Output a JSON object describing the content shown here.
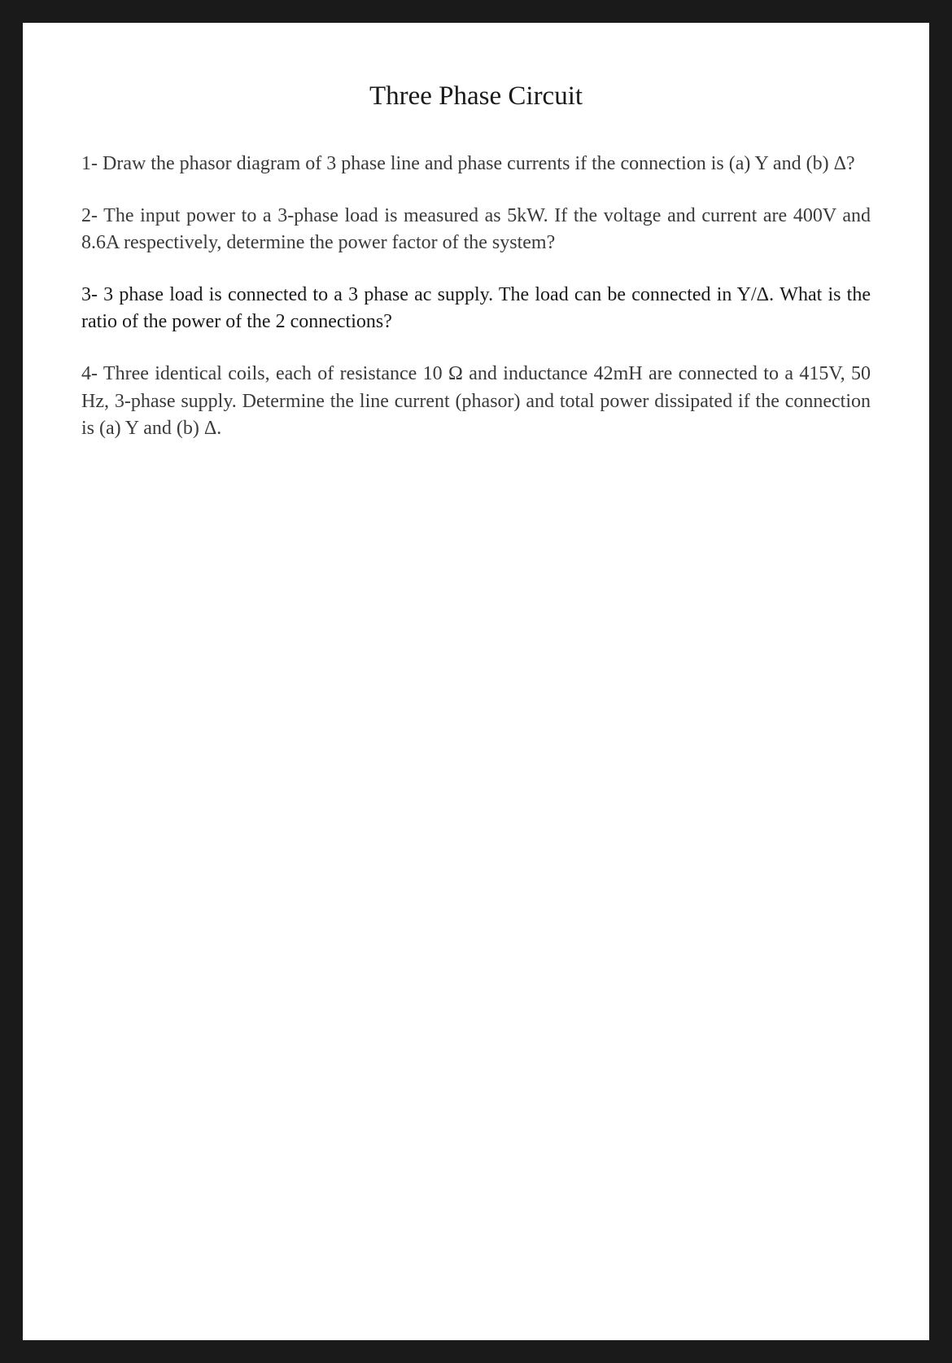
{
  "document": {
    "title": "Three Phase Circuit",
    "background_color": "#1a1a1a",
    "page_color": "#ffffff",
    "title_fontsize": 33,
    "body_fontsize": 24,
    "normal_text_color": "#3a3a3a",
    "emphasis_text_color": "#1a1a1a",
    "questions": [
      {
        "text": "1- Draw the phasor diagram of 3 phase line and phase currents if the connection is (a) Y and (b) Δ?",
        "style": "normal"
      },
      {
        "text": "2- The input power to a 3-phase load is measured as 5kW. If the voltage and current are 400V and 8.6A respectively, determine the power factor of the system?",
        "style": "normal"
      },
      {
        "text": "3- 3 phase load is connected to a 3 phase ac supply. The load can be connected in Y/Δ. What is the ratio of the power of the 2 connections?",
        "style": "emphasis"
      },
      {
        "text": "4- Three identical coils, each of resistance 10 Ω and inductance 42mH are connected to a 415V, 50 Hz, 3-phase supply. Determine the line current (phasor) and total power dissipated if the connection is (a) Y and (b) Δ.",
        "style": "normal"
      }
    ]
  }
}
